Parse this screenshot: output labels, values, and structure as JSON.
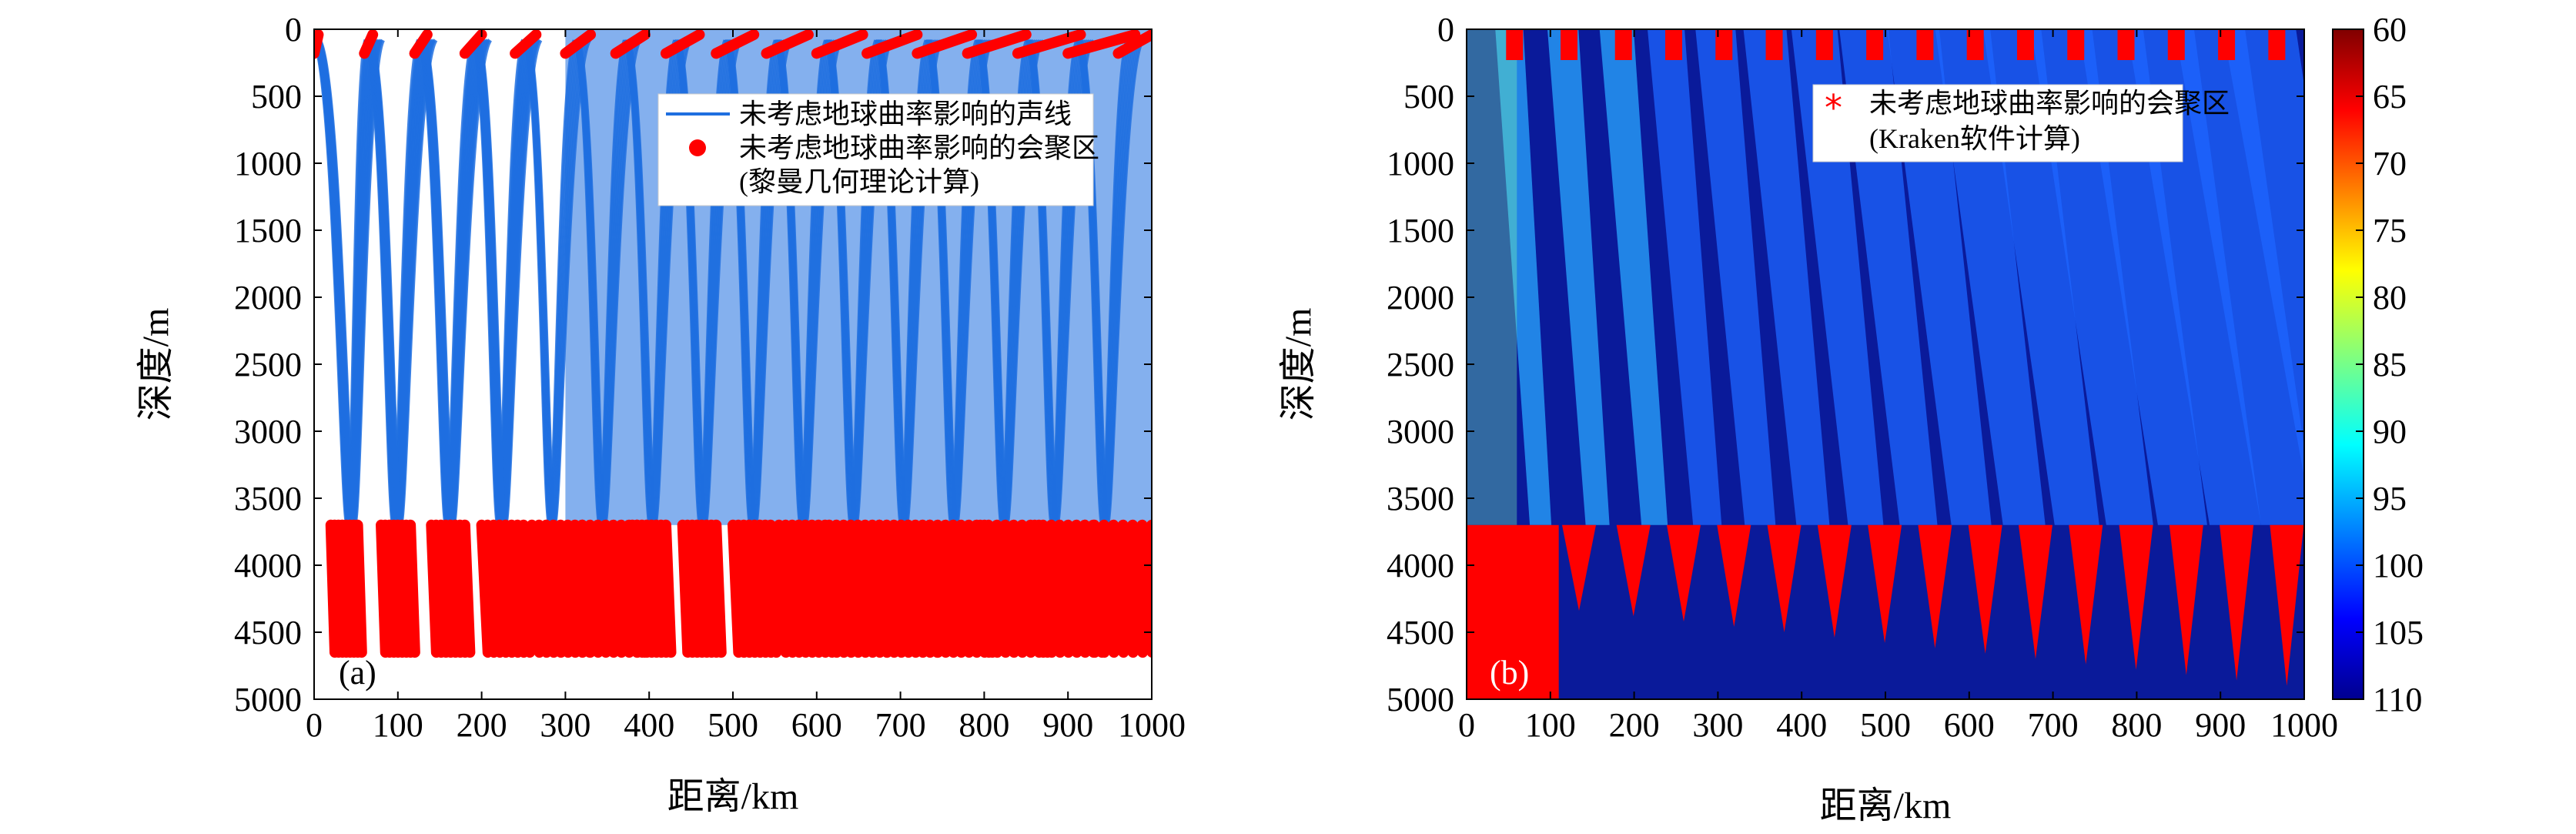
{
  "chart_data": [
    {
      "id": "a",
      "type": "line",
      "panel_label": "(a)",
      "xlabel": "距离/km",
      "ylabel": "深度/m",
      "xlim": [
        0,
        1000
      ],
      "ylim": [
        0,
        5000
      ],
      "y_reversed": true,
      "xticks": [
        0,
        100,
        200,
        300,
        400,
        500,
        600,
        700,
        800,
        900,
        1000
      ],
      "yticks": [
        0,
        500,
        1000,
        1500,
        2000,
        2500,
        3000,
        3500,
        4000,
        4500,
        5000
      ],
      "line_color": "#1f6fe0",
      "marker_color": "#ff0000",
      "bottom_depth_m": 3700,
      "legend": {
        "placement": "top-right",
        "entries": [
          {
            "kind": "line",
            "label": "未考虑地球曲率影响的声线"
          },
          {
            "kind": "dot",
            "label": "未考虑地球曲率影响的会聚区"
          },
          {
            "kind": "text",
            "label": "(黎曼几何理论计算)"
          }
        ]
      },
      "ray_cycles": [
        {
          "start_km": 0,
          "turn_km": 40,
          "end_km": 62
        },
        {
          "start_km": 62,
          "turn_km": 95,
          "end_km": 125
        },
        {
          "start_km": 125,
          "turn_km": 158,
          "end_km": 190
        },
        {
          "start_km": 190,
          "turn_km": 220,
          "end_km": 250
        },
        {
          "start_km": 250,
          "turn_km": 280,
          "end_km": 310
        },
        {
          "start_km": 310,
          "turn_km": 340,
          "end_km": 370
        },
        {
          "start_km": 370,
          "turn_km": 400,
          "end_km": 430
        },
        {
          "start_km": 430,
          "turn_km": 460,
          "end_km": 490
        },
        {
          "start_km": 490,
          "turn_km": 520,
          "end_km": 550
        },
        {
          "start_km": 550,
          "turn_km": 580,
          "end_km": 610
        },
        {
          "start_km": 610,
          "turn_km": 640,
          "end_km": 670
        },
        {
          "start_km": 670,
          "turn_km": 700,
          "end_km": 730
        },
        {
          "start_km": 730,
          "turn_km": 760,
          "end_km": 790
        },
        {
          "start_km": 790,
          "turn_km": 820,
          "end_km": 850
        },
        {
          "start_km": 850,
          "turn_km": 880,
          "end_km": 910
        },
        {
          "start_km": 910,
          "turn_km": 940,
          "end_km": 970
        }
      ],
      "bottom_zones": [
        {
          "x0": 20,
          "x1": 52,
          "depth_max": 4650
        },
        {
          "x0": 80,
          "x1": 115,
          "depth_max": 4650
        },
        {
          "x0": 140,
          "x1": 180,
          "depth_max": 4650
        },
        {
          "x0": 200,
          "x1": 250,
          "depth_max": 4650
        },
        {
          "x0": 260,
          "x1": 320,
          "depth_max": 4650
        },
        {
          "x0": 320,
          "x1": 385,
          "depth_max": 4650
        },
        {
          "x0": 380,
          "x1": 420,
          "depth_max": 4650
        },
        {
          "x0": 440,
          "x1": 480,
          "depth_max": 4650
        },
        {
          "x0": 500,
          "x1": 545,
          "depth_max": 4650
        },
        {
          "x0": 555,
          "x1": 610,
          "depth_max": 4650
        },
        {
          "x0": 615,
          "x1": 675,
          "depth_max": 4650
        },
        {
          "x0": 675,
          "x1": 735,
          "depth_max": 4650
        },
        {
          "x0": 735,
          "x1": 800,
          "depth_max": 4650
        },
        {
          "x0": 795,
          "x1": 865,
          "depth_max": 4650
        },
        {
          "x0": 860,
          "x1": 930,
          "depth_max": 4650
        },
        {
          "x0": 920,
          "x1": 1000,
          "depth_max": 4650
        }
      ],
      "surface_zones": [
        {
          "x0": 0,
          "x1": 5
        },
        {
          "x0": 60,
          "x1": 70
        },
        {
          "x0": 120,
          "x1": 135
        },
        {
          "x0": 180,
          "x1": 200
        },
        {
          "x0": 240,
          "x1": 265
        },
        {
          "x0": 300,
          "x1": 330
        },
        {
          "x0": 360,
          "x1": 395
        },
        {
          "x0": 420,
          "x1": 460
        },
        {
          "x0": 480,
          "x1": 525
        },
        {
          "x0": 540,
          "x1": 590
        },
        {
          "x0": 600,
          "x1": 655
        },
        {
          "x0": 660,
          "x1": 720
        },
        {
          "x0": 720,
          "x1": 785
        },
        {
          "x0": 780,
          "x1": 850
        },
        {
          "x0": 840,
          "x1": 915
        },
        {
          "x0": 900,
          "x1": 980
        },
        {
          "x0": 960,
          "x1": 1000
        }
      ]
    },
    {
      "id": "b",
      "type": "heatmap",
      "panel_label": "(b)",
      "xlabel": "距离/km",
      "ylabel": "深度/m",
      "xlim": [
        0,
        1000
      ],
      "ylim": [
        0,
        5000
      ],
      "y_reversed": true,
      "xticks": [
        0,
        100,
        200,
        300,
        400,
        500,
        600,
        700,
        800,
        900,
        1000
      ],
      "yticks": [
        0,
        500,
        1000,
        1500,
        2000,
        2500,
        3000,
        3500,
        4000,
        4500,
        5000
      ],
      "colorbar": {
        "ticks": [
          60,
          65,
          70,
          75,
          80,
          85,
          90,
          95,
          100,
          105,
          110
        ],
        "min": 60,
        "max": 110,
        "colormap": "jet_reversed"
      },
      "marker_color": "#ff0000",
      "legend": {
        "placement": "top-right",
        "entries": [
          {
            "kind": "asterisk",
            "label": "未考虑地球曲率影响的会聚区"
          },
          {
            "kind": "text",
            "label": "(Kraken软件计算)"
          }
        ]
      },
      "convergence_zones_km": [
        60,
        125,
        190,
        250,
        310,
        370,
        430,
        490,
        550,
        610,
        670,
        730,
        790,
        850,
        910,
        970
      ]
    }
  ]
}
